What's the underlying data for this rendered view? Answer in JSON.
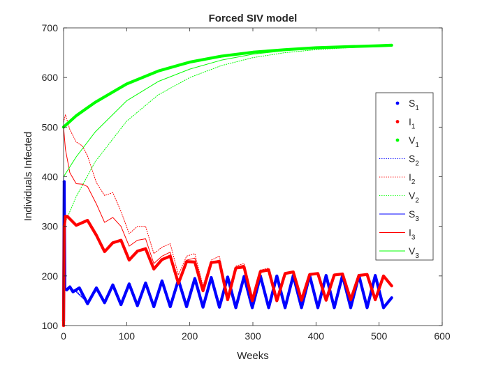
{
  "chart_data": {
    "type": "line",
    "title": "Forced SIV model",
    "xlabel": "Weeks",
    "ylabel": "Individuals Infected",
    "xlim": [
      0,
      600
    ],
    "ylim": [
      100,
      700
    ],
    "xticks": [
      "0",
      "100",
      "200",
      "300",
      "400",
      "500",
      "600"
    ],
    "yticks": [
      "100",
      "200",
      "300",
      "400",
      "500",
      "600",
      "700"
    ],
    "grid": false,
    "legend_position": "right",
    "series": [
      {
        "name": "S_1",
        "color": "#0000ff",
        "style": "dots",
        "x": [
          0,
          1,
          2,
          5,
          10,
          15,
          25,
          38,
          52,
          65,
          78,
          91,
          104,
          117,
          130,
          143,
          156,
          169,
          182,
          195,
          208,
          221,
          234,
          247,
          260,
          273,
          286,
          299,
          312,
          325,
          338,
          351,
          364,
          377,
          390,
          403,
          416,
          429,
          442,
          455,
          468,
          481,
          494,
          507,
          520
        ],
        "y": [
          110,
          390,
          175,
          172,
          178,
          168,
          176,
          144,
          176,
          146,
          182,
          142,
          184,
          140,
          186,
          138,
          190,
          138,
          192,
          138,
          195,
          137,
          197,
          137,
          198,
          136,
          199,
          136,
          200,
          136,
          200,
          136,
          201,
          136,
          201,
          136,
          201,
          136,
          201,
          136,
          201,
          136,
          201,
          136,
          156
        ]
      },
      {
        "name": "I_1",
        "color": "#ff0000",
        "style": "dots",
        "x": [
          0,
          1,
          3,
          6,
          10,
          20,
          38,
          52,
          65,
          78,
          91,
          104,
          117,
          130,
          143,
          156,
          169,
          182,
          195,
          208,
          221,
          234,
          247,
          260,
          273,
          286,
          299,
          312,
          325,
          338,
          351,
          364,
          377,
          390,
          403,
          416,
          429,
          442,
          455,
          468,
          481,
          494,
          507,
          520
        ],
        "y": [
          100,
          300,
          320,
          320,
          315,
          302,
          312,
          282,
          249,
          267,
          272,
          232,
          250,
          255,
          214,
          233,
          240,
          185,
          229,
          228,
          170,
          227,
          229,
          152,
          216,
          218,
          150,
          209,
          212,
          150,
          205,
          208,
          151,
          203,
          205,
          151,
          202,
          204,
          152,
          201,
          203,
          152,
          200,
          180
        ]
      },
      {
        "name": "V_1",
        "color": "#00ff00",
        "style": "dots",
        "x": [
          0,
          20,
          50,
          100,
          150,
          200,
          250,
          300,
          350,
          400,
          450,
          500,
          520
        ],
        "y": [
          500,
          523,
          550,
          587,
          613,
          631,
          643,
          651,
          656,
          660,
          662,
          664,
          665
        ]
      },
      {
        "name": "S_2",
        "color": "#0000ff",
        "style": "dotted",
        "x": [
          0,
          1,
          3,
          10,
          20,
          38,
          52,
          65,
          78,
          91,
          104,
          117,
          130,
          143,
          156,
          169,
          182,
          195,
          208,
          221,
          234,
          247,
          260,
          273,
          286,
          299,
          312,
          325,
          338,
          351,
          364,
          377,
          390,
          403,
          416,
          429,
          442,
          455,
          468,
          481,
          494,
          507,
          520
        ],
        "y": [
          395,
          180,
          172,
          175,
          170,
          148,
          170,
          150,
          178,
          144,
          182,
          142,
          184,
          140,
          186,
          140,
          192,
          140,
          194,
          139,
          196,
          138,
          197,
          138,
          198,
          137,
          199,
          137,
          200,
          137,
          200,
          137,
          201,
          137,
          201,
          137,
          201,
          137,
          201,
          137,
          201,
          137,
          157
        ]
      },
      {
        "name": "I_2",
        "color": "#ff0000",
        "style": "dotted",
        "x": [
          0,
          3,
          10,
          20,
          30,
          38,
          52,
          65,
          78,
          91,
          104,
          117,
          130,
          143,
          156,
          169,
          182,
          195,
          208,
          221,
          234,
          247,
          260,
          273,
          286,
          299,
          312,
          325,
          338,
          351,
          364,
          377,
          390,
          403,
          416,
          429,
          442,
          455,
          468,
          481,
          494,
          507,
          520
        ],
        "y": [
          510,
          525,
          495,
          470,
          462,
          442,
          388,
          362,
          368,
          330,
          285,
          300,
          300,
          245,
          258,
          265,
          202,
          240,
          245,
          180,
          232,
          240,
          160,
          220,
          225,
          155,
          212,
          216,
          152,
          207,
          210,
          152,
          204,
          206,
          152,
          203,
          205,
          153,
          202,
          204,
          153,
          201,
          182
        ]
      },
      {
        "name": "V_2",
        "color": "#00ff00",
        "style": "dotted",
        "x": [
          0,
          20,
          50,
          100,
          150,
          200,
          250,
          300,
          350,
          400,
          450,
          500,
          520
        ],
        "y": [
          300,
          360,
          430,
          512,
          565,
          600,
          624,
          640,
          650,
          656,
          660,
          663,
          664
        ]
      },
      {
        "name": "S_3",
        "color": "#0000ff",
        "style": "solid",
        "x": [
          0,
          1,
          3,
          10,
          20,
          38,
          52,
          65,
          78,
          91,
          104,
          117,
          130,
          143,
          156,
          169,
          182,
          195,
          208,
          221,
          234,
          247,
          260,
          273,
          286,
          299,
          312,
          325,
          338,
          351,
          364,
          377,
          390,
          403,
          416,
          429,
          442,
          455,
          468,
          481,
          494,
          507,
          520
        ],
        "y": [
          400,
          176,
          171,
          175,
          168,
          146,
          172,
          148,
          180,
          143,
          183,
          141,
          185,
          139,
          188,
          139,
          191,
          139,
          194,
          138,
          196,
          137,
          197,
          137,
          198,
          136,
          199,
          136,
          200,
          136,
          200,
          136,
          201,
          136,
          201,
          136,
          201,
          136,
          201,
          136,
          201,
          136,
          156
        ]
      },
      {
        "name": "I_3",
        "color": "#ff0000",
        "style": "solid",
        "x": [
          0,
          3,
          10,
          20,
          30,
          38,
          52,
          65,
          78,
          91,
          104,
          117,
          130,
          143,
          156,
          169,
          182,
          195,
          208,
          221,
          234,
          247,
          260,
          273,
          286,
          299,
          312,
          325,
          338,
          351,
          364,
          377,
          390,
          403,
          416,
          429,
          442,
          455,
          468,
          481,
          494,
          507,
          520
        ],
        "y": [
          500,
          455,
          408,
          386,
          385,
          380,
          345,
          308,
          318,
          300,
          260,
          272,
          275,
          225,
          240,
          248,
          190,
          232,
          236,
          170,
          228,
          232,
          155,
          218,
          222,
          152,
          210,
          214,
          150,
          206,
          209,
          150,
          203,
          206,
          151,
          202,
          204,
          152,
          201,
          203,
          152,
          200,
          180
        ]
      },
      {
        "name": "V_3",
        "color": "#00ff00",
        "style": "solid",
        "x": [
          0,
          20,
          50,
          100,
          150,
          200,
          250,
          300,
          350,
          400,
          450,
          500,
          520
        ],
        "y": [
          400,
          440,
          490,
          553,
          592,
          617,
          635,
          647,
          654,
          659,
          662,
          664,
          665
        ]
      }
    ]
  }
}
